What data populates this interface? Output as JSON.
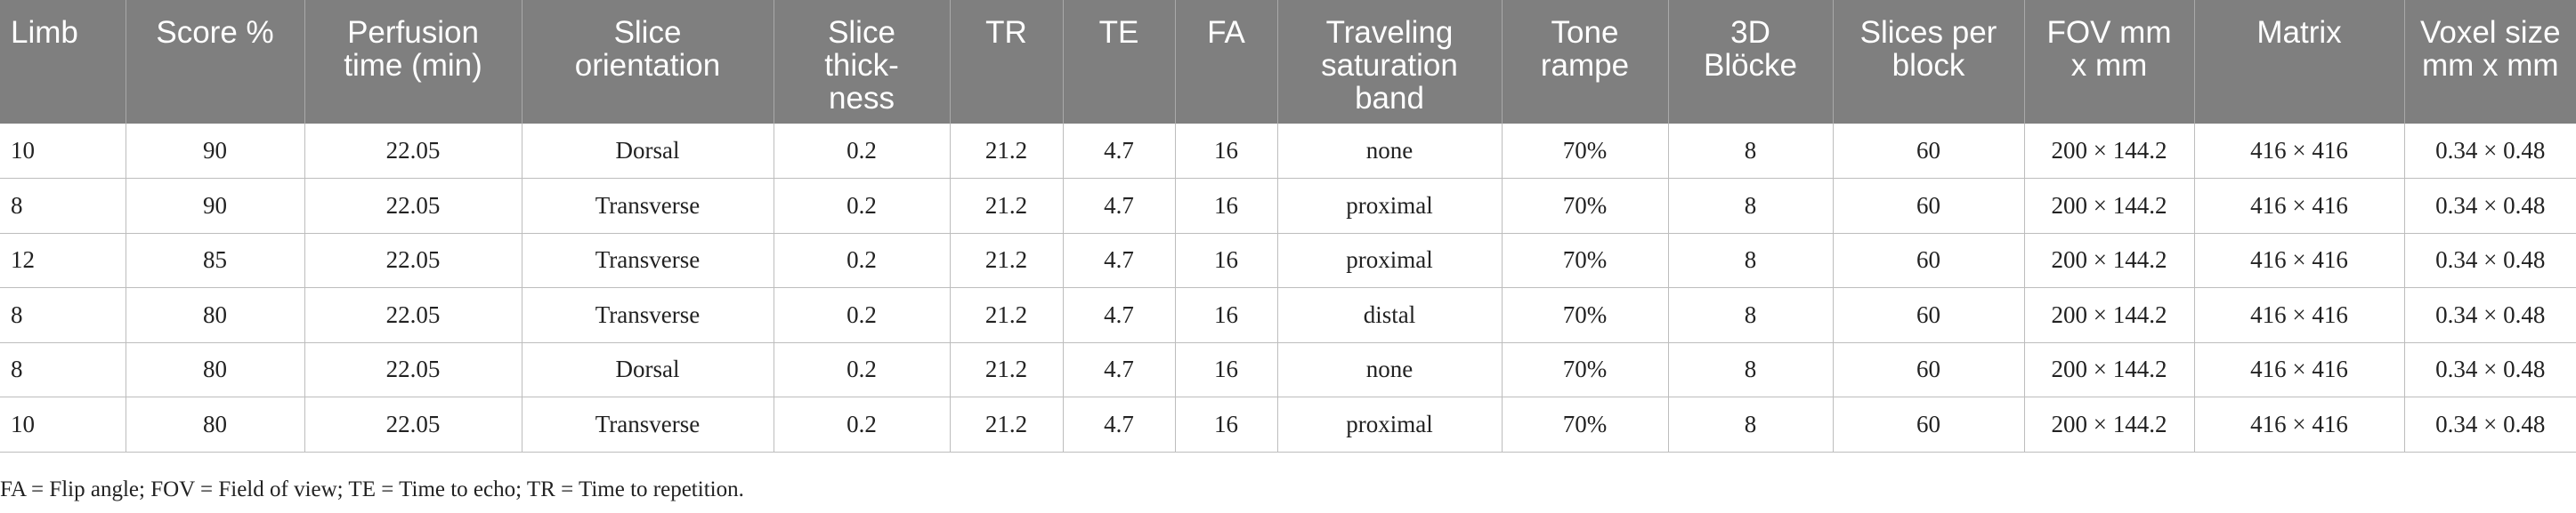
{
  "columns": [
    "Limb",
    "Score %",
    "Perfusion\ntime (min)",
    "Slice\norientation",
    "Slice\nthick-\nness",
    "TR",
    "TE",
    "FA",
    "Traveling\nsaturation\nband",
    "Tone\nrampe",
    "3D\nBlöcke",
    "Slices per\nblock",
    "FOV mm\nx mm",
    "Matrix",
    "Voxel size\nmm x mm"
  ],
  "rows": [
    [
      "10",
      "90",
      "22.05",
      "Dorsal",
      "0.2",
      "21.2",
      "4.7",
      "16",
      "none",
      "70%",
      "8",
      "60",
      "200 × 144.2",
      "416 × 416",
      "0.34 × 0.48"
    ],
    [
      "8",
      "90",
      "22.05",
      "Transverse",
      "0.2",
      "21.2",
      "4.7",
      "16",
      "proximal",
      "70%",
      "8",
      "60",
      "200 × 144.2",
      "416 × 416",
      "0.34 × 0.48"
    ],
    [
      "12",
      "85",
      "22.05",
      "Transverse",
      "0.2",
      "21.2",
      "4.7",
      "16",
      "proximal",
      "70%",
      "8",
      "60",
      "200 × 144.2",
      "416 × 416",
      "0.34 × 0.48"
    ],
    [
      "8",
      "80",
      "22.05",
      "Transverse",
      "0.2",
      "21.2",
      "4.7",
      "16",
      "distal",
      "70%",
      "8",
      "60",
      "200 × 144.2",
      "416 × 416",
      "0.34 × 0.48"
    ],
    [
      "8",
      "80",
      "22.05",
      "Dorsal",
      "0.2",
      "21.2",
      "4.7",
      "16",
      "none",
      "70%",
      "8",
      "60",
      "200 × 144.2",
      "416 × 416",
      "0.34 × 0.48"
    ],
    [
      "10",
      "80",
      "22.05",
      "Transverse",
      "0.2",
      "21.2",
      "4.7",
      "16",
      "proximal",
      "70%",
      "8",
      "60",
      "200 × 144.2",
      "416 × 416",
      "0.34 × 0.48"
    ]
  ],
  "footnote": "FA = Flip angle; FOV = Field of view; TE = Time to echo; TR = Time to repetition."
}
